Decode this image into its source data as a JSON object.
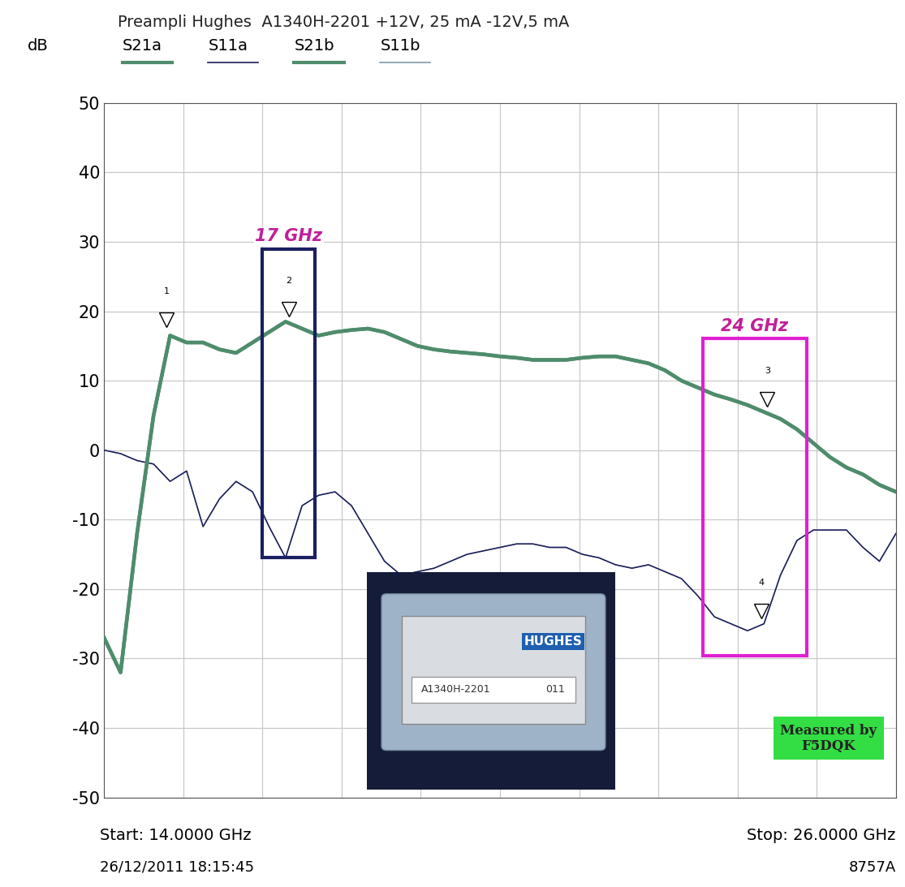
{
  "chart_data": {
    "type": "line",
    "title": "Preampli Hughes  A1340H-2201 +12V, 25 mA -12V,5 mA",
    "y_label": "dB",
    "x": [
      14.0,
      14.25,
      14.5,
      14.75,
      15.0,
      15.25,
      15.5,
      15.75,
      16.0,
      16.25,
      16.5,
      16.75,
      17.0,
      17.25,
      17.5,
      17.75,
      18.0,
      18.25,
      18.5,
      18.75,
      19.0,
      19.25,
      19.5,
      19.75,
      20.0,
      20.25,
      20.5,
      20.75,
      21.0,
      21.25,
      21.5,
      21.75,
      22.0,
      22.25,
      22.5,
      22.75,
      23.0,
      23.25,
      23.5,
      23.75,
      24.0,
      24.25,
      24.5,
      24.75,
      25.0,
      25.25,
      25.5,
      25.75,
      26.0
    ],
    "series": [
      {
        "name": "S21a",
        "color": "#4e8c6c",
        "values": [
          -27,
          -32,
          -12,
          5,
          16.5,
          15.5,
          15.5,
          14.5,
          14,
          15.5,
          17,
          18.5,
          17.5,
          16.5,
          17,
          17.3,
          17.5,
          17,
          16,
          15,
          14.5,
          14.2,
          14,
          13.8,
          13.5,
          13.3,
          13,
          13,
          13,
          13.3,
          13.5,
          13.5,
          13,
          12.5,
          11.5,
          10,
          9,
          8,
          7.3,
          6.5,
          5.5,
          4.5,
          3,
          1,
          -1,
          -2.5,
          -3.5,
          -5,
          -6
        ]
      },
      {
        "name": "S11a",
        "color": "#1c1c5a",
        "values": [
          0,
          -0.5,
          -1.5,
          -2,
          -4.5,
          -3,
          -11,
          -7,
          -4.5,
          -6,
          -11,
          -15.5,
          -8,
          -6.5,
          -6,
          -8,
          -12,
          -16,
          -18,
          -17.5,
          -17,
          -16,
          -15,
          -14.5,
          -14,
          -13.5,
          -13.5,
          -14,
          -14,
          -15,
          -15.5,
          -16.5,
          -17,
          -16.5,
          -17.5,
          -18.5,
          -21,
          -24,
          -25,
          -26,
          -25,
          -18,
          -13,
          -11.5,
          -11.5,
          -11.5,
          -14,
          -16,
          -12
        ]
      },
      {
        "name": "S21b",
        "color": "#4e8c6c",
        "values": [
          -27,
          -32,
          -12,
          5,
          16.5,
          15.5,
          15.5,
          14.5,
          14,
          15.5,
          17,
          18.5,
          17.5,
          16.5,
          17,
          17.3,
          17.5,
          17,
          16,
          15,
          14.5,
          14.2,
          14,
          13.8,
          13.5,
          13.3,
          13,
          13,
          13,
          13.3,
          13.5,
          13.5,
          13,
          12.5,
          11.5,
          10,
          9,
          8,
          7.3,
          6.5,
          5.5,
          4.5,
          3,
          1,
          -1,
          -2.5,
          -3.5,
          -5,
          -6
        ]
      },
      {
        "name": "S11b",
        "color": "#7f9aa8",
        "values": [
          0,
          -0.5,
          -1.5,
          -2,
          -4.5,
          -3,
          -11,
          -7,
          -4.5,
          -6,
          -11,
          -15.5,
          -8,
          -6.5,
          -6,
          -8,
          -12,
          -16,
          -18,
          -17.5,
          -17,
          -16,
          -15,
          -14.5,
          -14,
          -13.5,
          -13.5,
          -14,
          -14,
          -15,
          -15.5,
          -16.5,
          -17,
          -16.5,
          -17.5,
          -18.5,
          -21,
          -24,
          -25,
          -26,
          -25,
          -18,
          -13,
          -11.5,
          -11.5,
          -11.5,
          -14,
          -16,
          -12
        ]
      }
    ],
    "xlim": [
      14,
      26
    ],
    "xticks": [
      14,
      15.2,
      16.4,
      17.6,
      18.8,
      20,
      21.2,
      22.4,
      23.6,
      24.8,
      26
    ],
    "ylim": [
      -50,
      50
    ],
    "yticks": [
      -50,
      -40,
      -30,
      -20,
      -10,
      0,
      10,
      20,
      30,
      40,
      50
    ],
    "grid": true,
    "tick_labels": "y",
    "markers": [
      {
        "label": "1",
        "x": 14.95,
        "y": 17
      },
      {
        "label": "2",
        "x": 16.8,
        "y": 18.5
      },
      {
        "label": "3",
        "x": 24.05,
        "y": 5.5
      },
      {
        "label": "4",
        "x": 23.96,
        "y": -25
      }
    ],
    "highlights": [
      {
        "label": "17 GHz",
        "color": "#1a2060",
        "x": [
          16.4,
          17.2
        ],
        "y": [
          -15.5,
          29
        ]
      },
      {
        "label": "24 GHz",
        "color": "#e020d0",
        "x": [
          23.07,
          24.65
        ],
        "y": [
          -29.6,
          16.1
        ]
      }
    ],
    "footer": {
      "start": "Start: 14.0000 GHz",
      "stop": "Stop: 26.0000 GHz",
      "date": "26/12/2011 18:15:45",
      "instrument": "8757A"
    },
    "stamp": "Measured by\nF5DQK",
    "photo": {
      "texts": [
        "HUGHES",
        "A1340H-2201",
        "011"
      ]
    }
  }
}
